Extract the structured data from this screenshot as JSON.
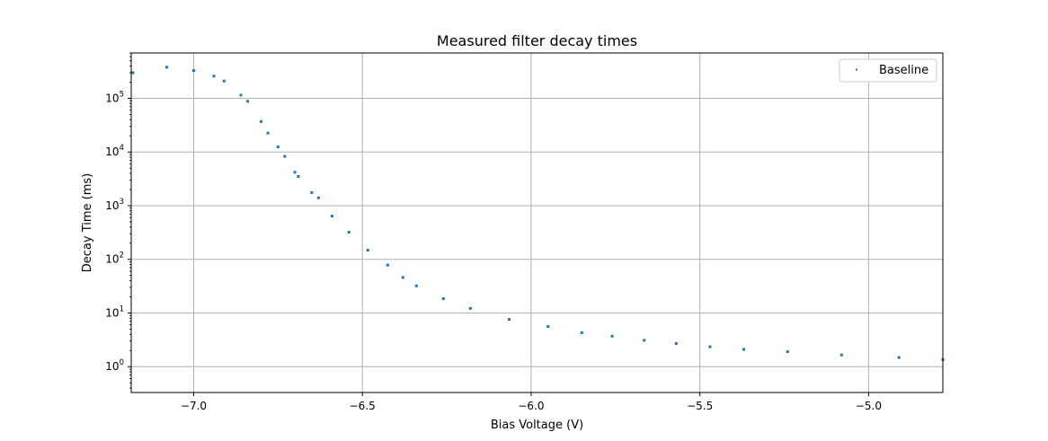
{
  "chart_data": {
    "type": "scatter",
    "title": "Measured filter decay times",
    "xlabel": "Bias Voltage (V)",
    "ylabel": "Decay Time (ms)",
    "xlim": [
      -7.185,
      -4.78
    ],
    "ylim": [
      0.33,
      700000
    ],
    "yscale": "log",
    "grid": true,
    "legend_position": "top-right",
    "x_ticks": [
      {
        "value": -7.0,
        "label": "−7.0"
      },
      {
        "value": -6.5,
        "label": "−6.5"
      },
      {
        "value": -6.0,
        "label": "−6.0"
      },
      {
        "value": -5.5,
        "label": "−5.5"
      },
      {
        "value": -5.0,
        "label": "−5.0"
      }
    ],
    "y_ticks": [
      {
        "value": 1,
        "base": "10",
        "exp": "0"
      },
      {
        "value": 10,
        "base": "10",
        "exp": "1"
      },
      {
        "value": 100,
        "base": "10",
        "exp": "2"
      },
      {
        "value": 1000,
        "base": "10",
        "exp": "3"
      },
      {
        "value": 10000,
        "base": "10",
        "exp": "4"
      },
      {
        "value": 100000,
        "base": "10",
        "exp": "5"
      }
    ],
    "series": [
      {
        "name": "Baseline",
        "color": "#1f77b4",
        "points": [
          [
            -7.18,
            300000
          ],
          [
            -7.08,
            380000
          ],
          [
            -7.0,
            330000
          ],
          [
            -6.94,
            260000
          ],
          [
            -6.91,
            210000
          ],
          [
            -6.86,
            115000
          ],
          [
            -6.84,
            88000
          ],
          [
            -6.8,
            37000
          ],
          [
            -6.78,
            22500
          ],
          [
            -6.75,
            12500
          ],
          [
            -6.73,
            8300
          ],
          [
            -6.7,
            4200
          ],
          [
            -6.69,
            3500
          ],
          [
            -6.65,
            1750
          ],
          [
            -6.63,
            1400
          ],
          [
            -6.59,
            640
          ],
          [
            -6.54,
            320
          ],
          [
            -6.484,
            148
          ],
          [
            -6.425,
            78
          ],
          [
            -6.38,
            46
          ],
          [
            -6.34,
            32
          ],
          [
            -6.26,
            18.5
          ],
          [
            -6.18,
            12.2
          ],
          [
            -6.065,
            7.6
          ],
          [
            -5.95,
            5.6
          ],
          [
            -5.85,
            4.3
          ],
          [
            -5.76,
            3.7
          ],
          [
            -5.665,
            3.1
          ],
          [
            -5.57,
            2.7
          ],
          [
            -5.47,
            2.35
          ],
          [
            -5.37,
            2.1
          ],
          [
            -5.24,
            1.9
          ],
          [
            -5.08,
            1.65
          ],
          [
            -4.91,
            1.48
          ],
          [
            -4.78,
            1.35
          ]
        ]
      }
    ]
  }
}
